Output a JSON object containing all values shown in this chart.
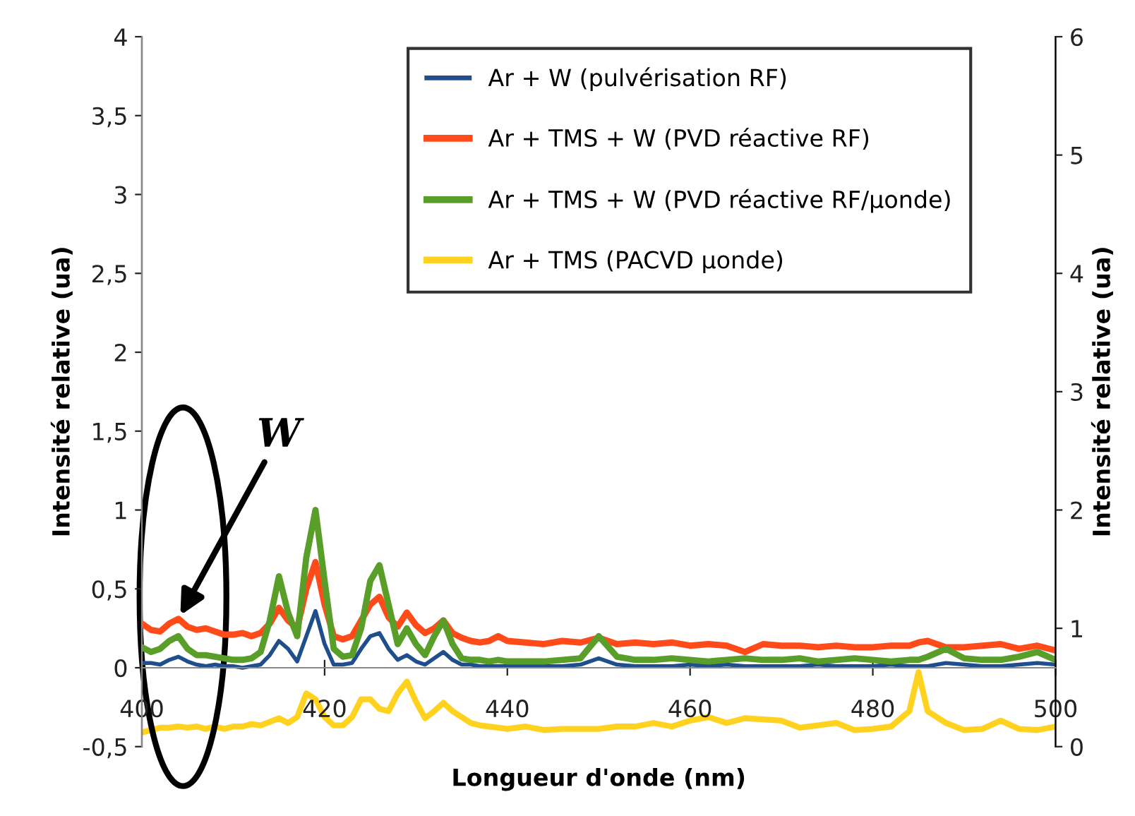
{
  "chart_data": {
    "type": "line",
    "xlabel": "Longueur d'onde (nm)",
    "ylabel": "Intensité relative (ua)",
    "y2label": "Intensité relative (ua)",
    "x": [
      400,
      401,
      402,
      403,
      404,
      405,
      406,
      407,
      408,
      409,
      410,
      411,
      412,
      413,
      414,
      415,
      416,
      417,
      418,
      419,
      420,
      421,
      422,
      423,
      424,
      425,
      426,
      427,
      428,
      429,
      430,
      431,
      432,
      433,
      434,
      435,
      436,
      437,
      438,
      439,
      440,
      442,
      444,
      446,
      448,
      450,
      452,
      454,
      456,
      458,
      460,
      462,
      464,
      466,
      468,
      470,
      472,
      474,
      476,
      478,
      480,
      482,
      484,
      485,
      486,
      488,
      490,
      492,
      494,
      496,
      498,
      500
    ],
    "series": [
      {
        "name": "Ar + W (pulvérisation RF)",
        "color": "#1f4e8c",
        "values": [
          0.03,
          0.03,
          0.02,
          0.05,
          0.07,
          0.04,
          0.02,
          0.01,
          0.02,
          0.01,
          0.01,
          0.0,
          0.01,
          0.02,
          0.08,
          0.17,
          0.12,
          0.04,
          0.2,
          0.36,
          0.15,
          0.02,
          0.02,
          0.03,
          0.12,
          0.2,
          0.22,
          0.12,
          0.05,
          0.08,
          0.04,
          0.02,
          0.06,
          0.1,
          0.05,
          0.02,
          0.02,
          0.01,
          0.01,
          0.01,
          0.01,
          0.01,
          0.01,
          0.01,
          0.02,
          0.06,
          0.02,
          0.01,
          0.01,
          0.01,
          0.02,
          0.01,
          0.02,
          0.01,
          0.01,
          0.01,
          0.01,
          0.02,
          0.01,
          0.01,
          0.01,
          0.02,
          0.01,
          0.01,
          0.01,
          0.03,
          0.02,
          0.01,
          0.01,
          0.02,
          0.03,
          0.02
        ]
      },
      {
        "name": "Ar + TMS + W (PVD réactive RF)",
        "color": "#ff4b1a",
        "values": [
          0.28,
          0.24,
          0.23,
          0.28,
          0.31,
          0.26,
          0.24,
          0.25,
          0.23,
          0.21,
          0.21,
          0.22,
          0.2,
          0.22,
          0.28,
          0.38,
          0.3,
          0.25,
          0.5,
          0.67,
          0.4,
          0.2,
          0.18,
          0.2,
          0.3,
          0.4,
          0.45,
          0.32,
          0.26,
          0.35,
          0.27,
          0.22,
          0.25,
          0.3,
          0.22,
          0.19,
          0.17,
          0.16,
          0.17,
          0.2,
          0.17,
          0.16,
          0.15,
          0.17,
          0.16,
          0.19,
          0.15,
          0.16,
          0.15,
          0.16,
          0.14,
          0.15,
          0.14,
          0.1,
          0.15,
          0.14,
          0.14,
          0.13,
          0.14,
          0.13,
          0.13,
          0.14,
          0.14,
          0.16,
          0.17,
          0.13,
          0.13,
          0.14,
          0.15,
          0.12,
          0.14,
          0.11
        ]
      },
      {
        "name": "Ar + TMS + W (PVD réactive RF/µonde)",
        "color": "#5a9e2a",
        "values": [
          0.13,
          0.1,
          0.12,
          0.17,
          0.2,
          0.12,
          0.08,
          0.08,
          0.07,
          0.06,
          0.05,
          0.05,
          0.06,
          0.1,
          0.3,
          0.58,
          0.35,
          0.2,
          0.7,
          1.0,
          0.55,
          0.12,
          0.07,
          0.08,
          0.25,
          0.55,
          0.65,
          0.4,
          0.15,
          0.25,
          0.15,
          0.08,
          0.2,
          0.3,
          0.15,
          0.06,
          0.05,
          0.05,
          0.04,
          0.05,
          0.04,
          0.04,
          0.04,
          0.05,
          0.06,
          0.2,
          0.07,
          0.05,
          0.05,
          0.06,
          0.05,
          0.04,
          0.05,
          0.06,
          0.05,
          0.05,
          0.06,
          0.04,
          0.05,
          0.06,
          0.05,
          0.04,
          0.05,
          0.05,
          0.07,
          0.12,
          0.06,
          0.05,
          0.05,
          0.07,
          0.1,
          0.05
        ]
      },
      {
        "name": "Ar + TMS (PACVD µonde)",
        "color": "#ffd21f",
        "axis": "y2",
        "values": [
          0.12,
          0.14,
          0.16,
          0.16,
          0.17,
          0.16,
          0.17,
          0.15,
          0.17,
          0.15,
          0.17,
          0.17,
          0.19,
          0.18,
          0.21,
          0.24,
          0.2,
          0.25,
          0.45,
          0.4,
          0.25,
          0.18,
          0.18,
          0.25,
          0.4,
          0.4,
          0.32,
          0.3,
          0.45,
          0.55,
          0.38,
          0.24,
          0.3,
          0.37,
          0.3,
          0.25,
          0.2,
          0.18,
          0.17,
          0.16,
          0.15,
          0.17,
          0.14,
          0.15,
          0.15,
          0.15,
          0.17,
          0.17,
          0.2,
          0.17,
          0.22,
          0.25,
          0.2,
          0.24,
          0.23,
          0.22,
          0.16,
          0.18,
          0.2,
          0.14,
          0.15,
          0.17,
          0.3,
          0.63,
          0.3,
          0.2,
          0.14,
          0.15,
          0.22,
          0.15,
          0.14,
          0.17
        ]
      }
    ],
    "xlim": [
      400,
      500
    ],
    "xticks": [
      400,
      420,
      440,
      460,
      480,
      500
    ],
    "ylim": [
      -0.5,
      4
    ],
    "yticks": [
      {
        "value": -0.5,
        "label": "-0,5"
      },
      0,
      {
        "value": 0.5,
        "label": "0,5"
      },
      1,
      {
        "value": 1.5,
        "label": "1,5"
      },
      2,
      {
        "value": 2.5,
        "label": "2,5"
      },
      3,
      {
        "value": 3.5,
        "label": "3,5"
      },
      4
    ],
    "y2lim": [
      0,
      6
    ],
    "y2ticks": [
      0,
      1,
      2,
      3,
      4,
      5,
      6
    ],
    "annotations": [
      {
        "text": "W",
        "x": 404,
        "y": 0.31
      }
    ],
    "legend": "top right",
    "grid": false,
    "marker": "none",
    "line_style": "solid"
  }
}
